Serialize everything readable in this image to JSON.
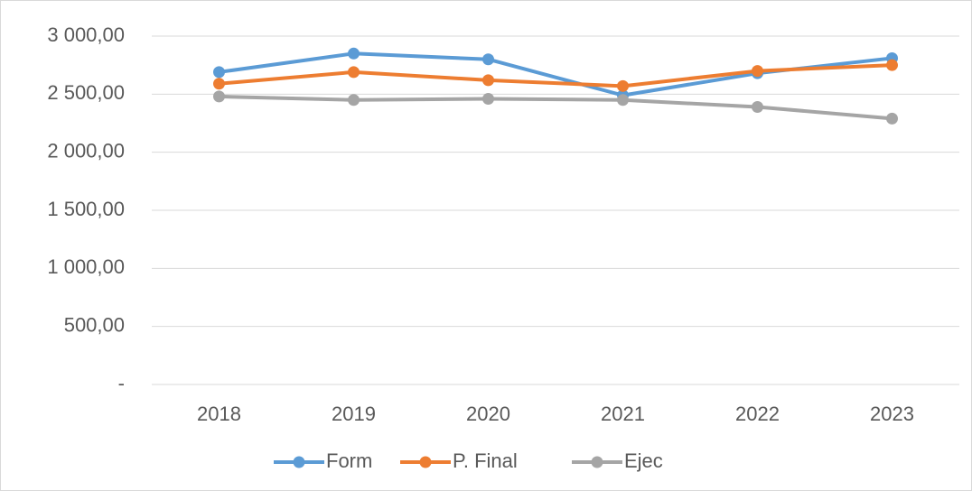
{
  "chart_data": {
    "type": "line",
    "categories": [
      "2018",
      "2019",
      "2020",
      "2021",
      "2022",
      "2023"
    ],
    "series": [
      {
        "name": "Form",
        "color": "#5b9bd5",
        "values": [
          2690,
          2850,
          2800,
          2490,
          2680,
          2810
        ]
      },
      {
        "name": "P. Final",
        "color": "#ed7d31",
        "values": [
          2590,
          2690,
          2620,
          2570,
          2700,
          2750
        ]
      },
      {
        "name": "Ejec",
        "color": "#a5a5a5",
        "values": [
          2480,
          2450,
          2460,
          2450,
          2390,
          2290
        ]
      }
    ],
    "ylim": [
      0,
      3000
    ],
    "yticks": [
      {
        "value": 0,
        "label": "-"
      },
      {
        "value": 500,
        "label": "500,00"
      },
      {
        "value": 1000,
        "label": "1 000,00"
      },
      {
        "value": 1500,
        "label": "1 500,00"
      },
      {
        "value": 2000,
        "label": "2 000,00"
      },
      {
        "value": 2500,
        "label": "2 500,00"
      },
      {
        "value": 3000,
        "label": "3 000,00"
      }
    ],
    "grid": true,
    "legend": "bottom"
  }
}
